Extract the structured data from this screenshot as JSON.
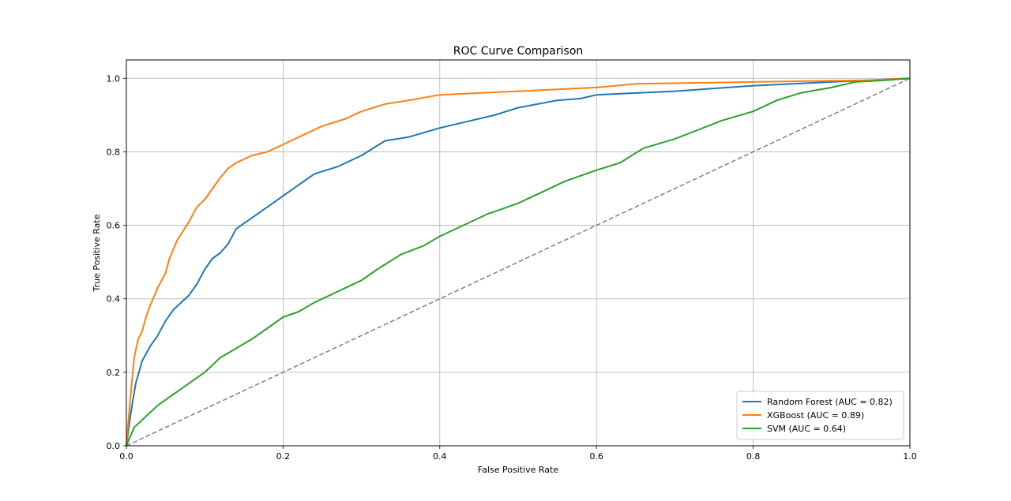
{
  "chart_data": {
    "type": "line",
    "title": "ROC Curve Comparison",
    "xlabel": "False Positive Rate",
    "ylabel": "True Positive Rate",
    "xlim": [
      0.0,
      1.0
    ],
    "ylim": [
      0.0,
      1.05
    ],
    "xticks": [
      0.0,
      0.2,
      0.4,
      0.6,
      0.8,
      1.0
    ],
    "yticks": [
      0.0,
      0.2,
      0.4,
      0.6,
      0.8,
      1.0
    ],
    "xtick_labels": [
      "0.0",
      "0.2",
      "0.4",
      "0.6",
      "0.8",
      "1.0"
    ],
    "ytick_labels": [
      "0.0",
      "0.2",
      "0.4",
      "0.6",
      "0.8",
      "1.0"
    ],
    "grid": true,
    "legend_position": "bottom-right",
    "series": [
      {
        "name": "Random Forest (AUC = 0.82)",
        "color": "#1f77b4",
        "x": [
          0.0,
          0.005,
          0.008,
          0.012,
          0.016,
          0.02,
          0.025,
          0.03,
          0.04,
          0.05,
          0.06,
          0.07,
          0.08,
          0.09,
          0.1,
          0.11,
          0.12,
          0.13,
          0.14,
          0.15,
          0.16,
          0.18,
          0.2,
          0.22,
          0.24,
          0.27,
          0.3,
          0.33,
          0.36,
          0.4,
          0.43,
          0.47,
          0.5,
          0.55,
          0.58,
          0.6,
          0.65,
          0.7,
          0.8,
          0.9,
          1.0
        ],
        "y": [
          0.0,
          0.08,
          0.12,
          0.17,
          0.2,
          0.23,
          0.25,
          0.27,
          0.3,
          0.34,
          0.37,
          0.39,
          0.41,
          0.44,
          0.48,
          0.51,
          0.525,
          0.55,
          0.59,
          0.605,
          0.62,
          0.65,
          0.68,
          0.71,
          0.74,
          0.76,
          0.79,
          0.83,
          0.84,
          0.865,
          0.88,
          0.9,
          0.92,
          0.94,
          0.945,
          0.955,
          0.96,
          0.965,
          0.98,
          0.99,
          1.0
        ]
      },
      {
        "name": "XGBoost (AUC = 0.89)",
        "color": "#ff7f0e",
        "x": [
          0.0,
          0.003,
          0.006,
          0.01,
          0.015,
          0.02,
          0.025,
          0.03,
          0.04,
          0.05,
          0.055,
          0.065,
          0.08,
          0.09,
          0.1,
          0.11,
          0.12,
          0.13,
          0.14,
          0.16,
          0.18,
          0.2,
          0.22,
          0.25,
          0.28,
          0.3,
          0.33,
          0.36,
          0.4,
          0.45,
          0.5,
          0.55,
          0.6,
          0.65,
          0.8,
          0.95,
          1.0
        ],
        "y": [
          0.0,
          0.08,
          0.15,
          0.24,
          0.29,
          0.31,
          0.35,
          0.38,
          0.43,
          0.47,
          0.51,
          0.56,
          0.61,
          0.65,
          0.67,
          0.7,
          0.73,
          0.755,
          0.77,
          0.79,
          0.8,
          0.82,
          0.84,
          0.87,
          0.89,
          0.91,
          0.93,
          0.94,
          0.955,
          0.96,
          0.965,
          0.97,
          0.975,
          0.985,
          0.99,
          0.995,
          1.0
        ]
      },
      {
        "name": "SVM (AUC = 0.64)",
        "color": "#2ca02c",
        "x": [
          0.0,
          0.01,
          0.02,
          0.03,
          0.04,
          0.05,
          0.06,
          0.08,
          0.1,
          0.12,
          0.14,
          0.16,
          0.18,
          0.2,
          0.22,
          0.24,
          0.26,
          0.28,
          0.3,
          0.32,
          0.35,
          0.38,
          0.4,
          0.43,
          0.46,
          0.5,
          0.53,
          0.56,
          0.6,
          0.63,
          0.66,
          0.7,
          0.73,
          0.76,
          0.8,
          0.83,
          0.86,
          0.9,
          0.93,
          0.97,
          1.0
        ],
        "y": [
          0.0,
          0.05,
          0.07,
          0.09,
          0.11,
          0.125,
          0.14,
          0.17,
          0.2,
          0.24,
          0.265,
          0.29,
          0.32,
          0.35,
          0.365,
          0.39,
          0.41,
          0.43,
          0.45,
          0.48,
          0.52,
          0.545,
          0.57,
          0.6,
          0.63,
          0.66,
          0.69,
          0.72,
          0.75,
          0.77,
          0.81,
          0.835,
          0.86,
          0.885,
          0.91,
          0.94,
          0.96,
          0.975,
          0.99,
          0.995,
          1.0
        ]
      },
      {
        "name": "",
        "color": "#808080",
        "dashed": true,
        "x": [
          0.0,
          1.0
        ],
        "y": [
          0.0,
          1.0
        ]
      }
    ]
  }
}
